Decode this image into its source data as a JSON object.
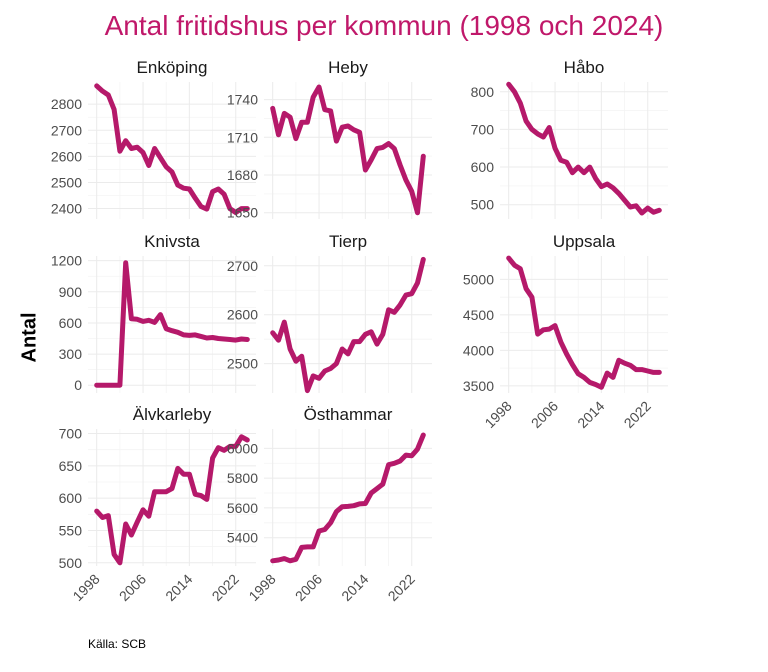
{
  "chart_data": {
    "type": "line",
    "title": "Antal fritidshus per kommun (1998 och 2024)",
    "ylabel": "Antal",
    "source": "Källa: SCB",
    "color": "#b5196a",
    "x": [
      1998,
      1999,
      2000,
      2001,
      2002,
      2003,
      2004,
      2005,
      2006,
      2007,
      2008,
      2009,
      2010,
      2011,
      2012,
      2013,
      2014,
      2015,
      2016,
      2017,
      2018,
      2019,
      2020,
      2021,
      2022,
      2023,
      2024
    ],
    "xlim": [
      1996.5,
      2025.5
    ],
    "xticks": [
      1998,
      2006,
      2014,
      2022
    ],
    "panels": [
      {
        "name": "Enköping",
        "ylim": [
          2360,
          2885
        ],
        "yticks": [
          2400,
          2500,
          2600,
          2700,
          2800
        ],
        "values": [
          2870,
          2850,
          2835,
          2780,
          2620,
          2660,
          2630,
          2635,
          2615,
          2565,
          2630,
          2595,
          2560,
          2540,
          2490,
          2478,
          2475,
          2440,
          2408,
          2398,
          2465,
          2475,
          2455,
          2400,
          2385,
          2400,
          2400
        ]
      },
      {
        "name": "Heby",
        "ylim": [
          1645,
          1754
        ],
        "yticks": [
          1650,
          1680,
          1710,
          1740
        ],
        "values": [
          1733,
          1712,
          1729,
          1726,
          1709,
          1722,
          1722,
          1742,
          1750,
          1732,
          1731,
          1707,
          1718,
          1719,
          1716,
          1714,
          1684,
          1692,
          1701,
          1702,
          1705,
          1701,
          1688,
          1676,
          1667,
          1650,
          1695
        ]
      },
      {
        "name": "Håbo",
        "ylim": [
          462,
          826
        ],
        "yticks": [
          500,
          600,
          700,
          800
        ],
        "values": [
          820,
          800,
          770,
          722,
          700,
          688,
          680,
          705,
          650,
          618,
          613,
          585,
          600,
          585,
          600,
          570,
          548,
          555,
          545,
          530,
          512,
          494,
          497,
          478,
          491,
          480,
          485
        ]
      },
      {
        "name": "Knivsta",
        "ylim": [
          -75,
          1245
        ],
        "yticks": [
          0,
          300,
          600,
          900,
          1200
        ],
        "values": [
          0,
          0,
          0,
          0,
          0,
          1180,
          640,
          635,
          615,
          625,
          605,
          680,
          545,
          525,
          510,
          485,
          480,
          485,
          470,
          455,
          460,
          450,
          445,
          440,
          435,
          445,
          440
        ]
      },
      {
        "name": "Tierp",
        "ylim": [
          2440,
          2720
        ],
        "yticks": [
          2500,
          2600,
          2700
        ],
        "values": [
          2563,
          2548,
          2585,
          2530,
          2505,
          2515,
          2445,
          2475,
          2470,
          2485,
          2490,
          2500,
          2530,
          2520,
          2545,
          2545,
          2560,
          2565,
          2540,
          2560,
          2610,
          2605,
          2620,
          2640,
          2643,
          2665,
          2713
        ]
      },
      {
        "name": "Uppsala",
        "ylim": [
          3400,
          5330
        ],
        "yticks": [
          3500,
          4000,
          4500,
          5000
        ],
        "values": [
          5300,
          5200,
          5150,
          4870,
          4750,
          4230,
          4290,
          4300,
          4350,
          4120,
          3950,
          3800,
          3670,
          3620,
          3550,
          3520,
          3480,
          3680,
          3620,
          3860,
          3820,
          3790,
          3730,
          3730,
          3710,
          3690,
          3690
        ]
      },
      {
        "name": "Älvkarleby",
        "ylim": [
          495,
          707
        ],
        "yticks": [
          500,
          550,
          600,
          650,
          700
        ],
        "values": [
          580,
          570,
          573,
          513,
          500,
          560,
          543,
          563,
          582,
          572,
          610,
          610,
          610,
          615,
          646,
          637,
          637,
          606,
          604,
          598,
          662,
          678,
          674,
          680,
          680,
          695,
          690
        ]
      },
      {
        "name": "Östhammar",
        "ylim": [
          5210,
          6130
        ],
        "yticks": [
          5400,
          5600,
          5800,
          6000
        ],
        "values": [
          5245,
          5250,
          5260,
          5245,
          5255,
          5335,
          5338,
          5338,
          5445,
          5455,
          5500,
          5575,
          5608,
          5610,
          5615,
          5627,
          5630,
          5700,
          5730,
          5760,
          5890,
          5900,
          5915,
          5955,
          5950,
          5995,
          6090
        ]
      }
    ]
  }
}
